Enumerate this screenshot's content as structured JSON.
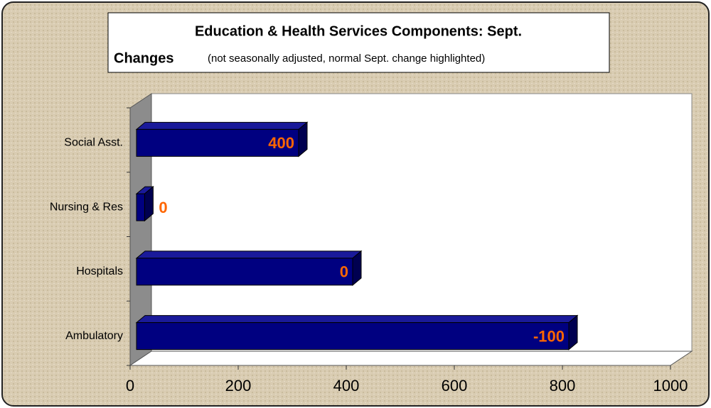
{
  "chart_data": {
    "type": "bar3d_horizontal",
    "title_lines": [
      "Education & Health Services Components: Sept.",
      "Changes"
    ],
    "subtitle": "(not seasonally adjusted, normal Sept. change highlighted)",
    "categories": [
      "Ambulatory",
      "Hospitals",
      "Nursing & Res",
      "Social Asst."
    ],
    "values": [
      800,
      400,
      15,
      300
    ],
    "normal_change": [
      -100,
      0,
      0,
      400
    ],
    "color": "#000080",
    "label_color": "#ff6600",
    "xlim": [
      0,
      1000
    ],
    "xticks": [
      0,
      200,
      400,
      600,
      800,
      1000
    ]
  }
}
